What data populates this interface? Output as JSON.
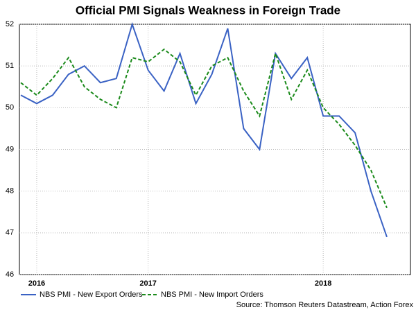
{
  "chart_data": {
    "type": "line",
    "title": "Official PMI Signals Weakness in Foreign Trade",
    "source": "Source: Thomson Reuters Datastream, Action Forex",
    "categories": [
      null,
      "2016",
      null,
      null,
      null,
      null,
      null,
      null,
      "2017",
      null,
      null,
      null,
      null,
      null,
      null,
      null,
      null,
      null,
      null,
      "2018",
      null,
      null,
      null,
      null
    ],
    "series": [
      {
        "name": "NBS PMI - New Export Orders",
        "color": "#3a62c4",
        "dash": false,
        "values": [
          50.3,
          50.1,
          50.3,
          50.8,
          51.0,
          50.6,
          50.7,
          52.0,
          50.9,
          50.4,
          51.3,
          50.1,
          50.8,
          51.9,
          49.5,
          49.0,
          51.3,
          50.7,
          51.2,
          49.8,
          49.8,
          49.4,
          48.0,
          46.9
        ]
      },
      {
        "name": "NBS PMI - New Import Orders",
        "color": "#1a8a1a",
        "dash": true,
        "values": [
          50.6,
          50.3,
          50.7,
          51.2,
          50.5,
          50.2,
          50.0,
          51.2,
          51.1,
          51.4,
          51.1,
          50.3,
          51.0,
          51.2,
          50.4,
          49.8,
          51.3,
          50.2,
          50.9,
          50.0,
          49.6,
          49.1,
          48.5,
          47.6
        ]
      }
    ],
    "ylim": [
      46,
      52
    ],
    "yticks": [
      46,
      47,
      48,
      49,
      50,
      51,
      52
    ],
    "grid": true,
    "legend": "bottom"
  }
}
